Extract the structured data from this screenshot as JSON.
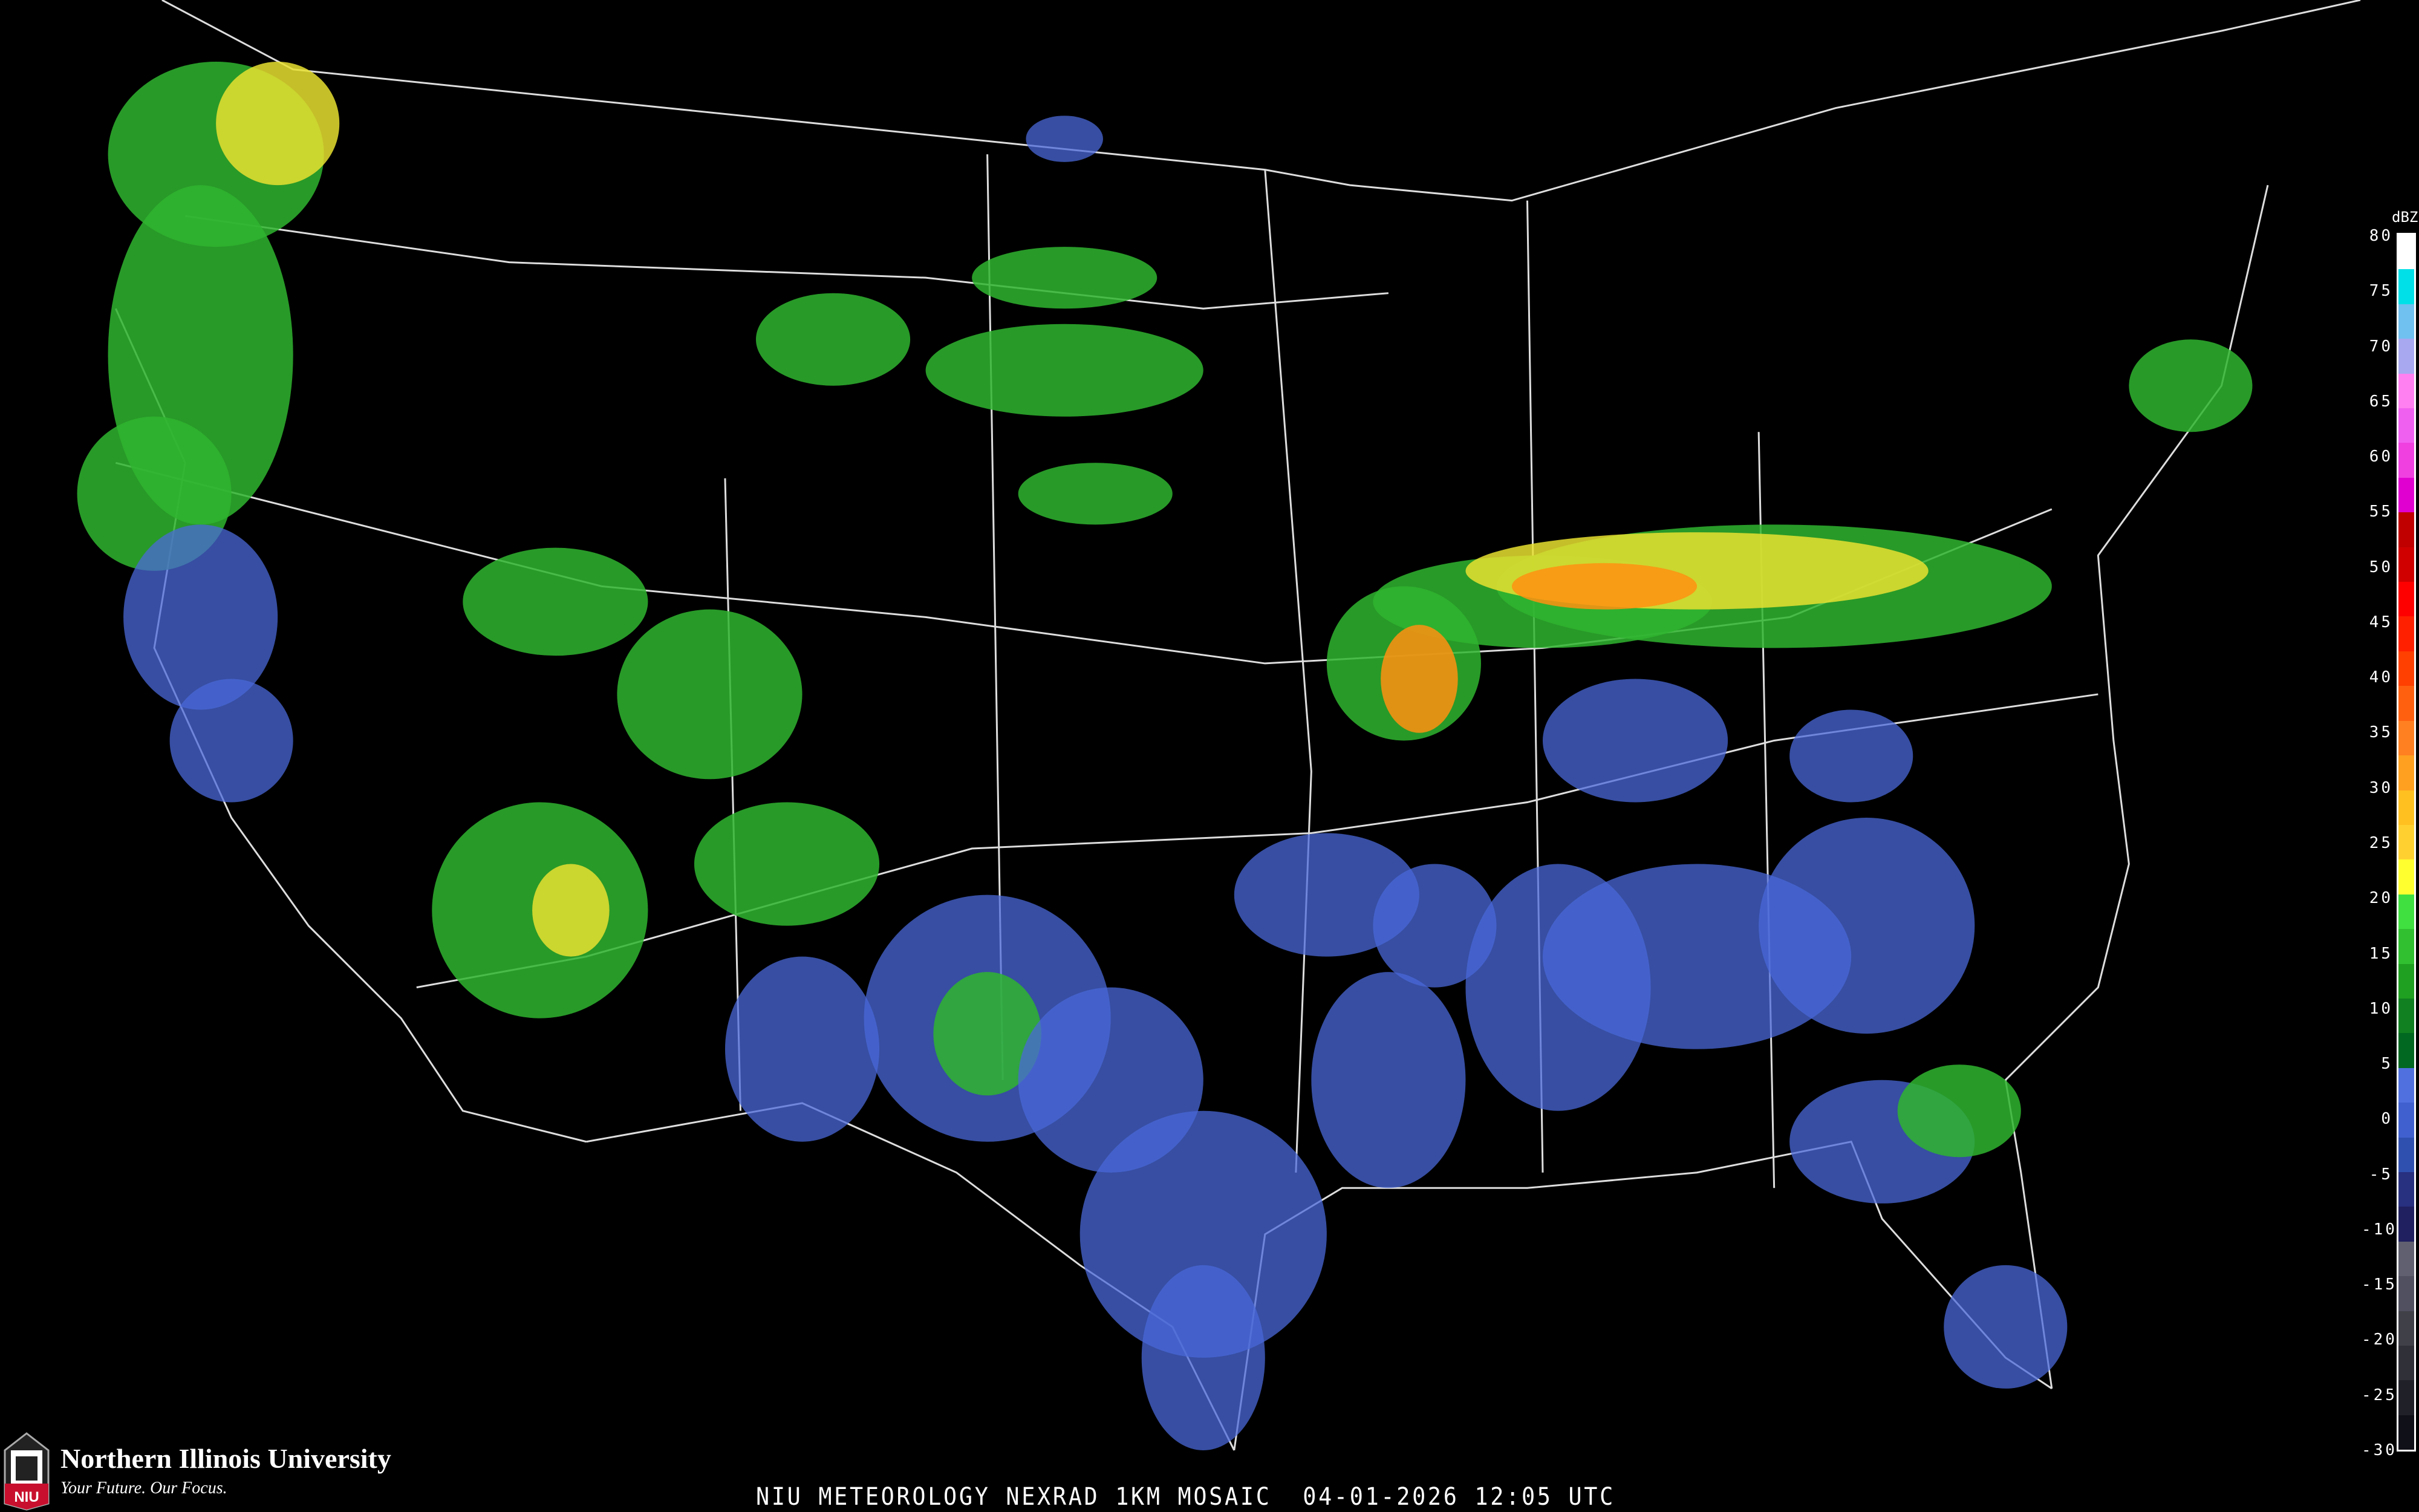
{
  "title": "NIU METEOROLOGY NEXRAD 1KM MOSAIC  04-01-2026 12:05 UTC",
  "branding": {
    "university": "Northern Illinois University",
    "tagline": "Your Future. Our Focus.",
    "logo_text": "NIU"
  },
  "colorbar": {
    "unit": "dBZ",
    "labels": [
      "80",
      "75",
      "70",
      "65",
      "60",
      "55",
      "50",
      "45",
      "40",
      "35",
      "30",
      "25",
      "20",
      "15",
      "10",
      "5",
      "0",
      "-5",
      "-10",
      "-15",
      "-20",
      "-25",
      "-30"
    ],
    "colors": [
      "#ffffff",
      "#00e0e8",
      "#70c0f0",
      "#a8a8f0",
      "#ff80f0",
      "#f060f0",
      "#f040e0",
      "#e000d0",
      "#c00000",
      "#d00000",
      "#ff0000",
      "#ff2000",
      "#ff4000",
      "#ff6010",
      "#ff8020",
      "#ffa020",
      "#ffc020",
      "#ffd030",
      "#ffff30",
      "#40e040",
      "#30c030",
      "#20a020",
      "#108020",
      "#006820",
      "#5070e0",
      "#4060d0",
      "#3050b0",
      "#283080",
      "#202060",
      "#606070",
      "#505060",
      "#404048",
      "#303038",
      "#202028",
      "#101018"
    ]
  },
  "echo_colors": {
    "weak": "#4a68d8",
    "light": "#2fb52f",
    "moderate": "#e8e030",
    "heavy": "#ff9010"
  }
}
